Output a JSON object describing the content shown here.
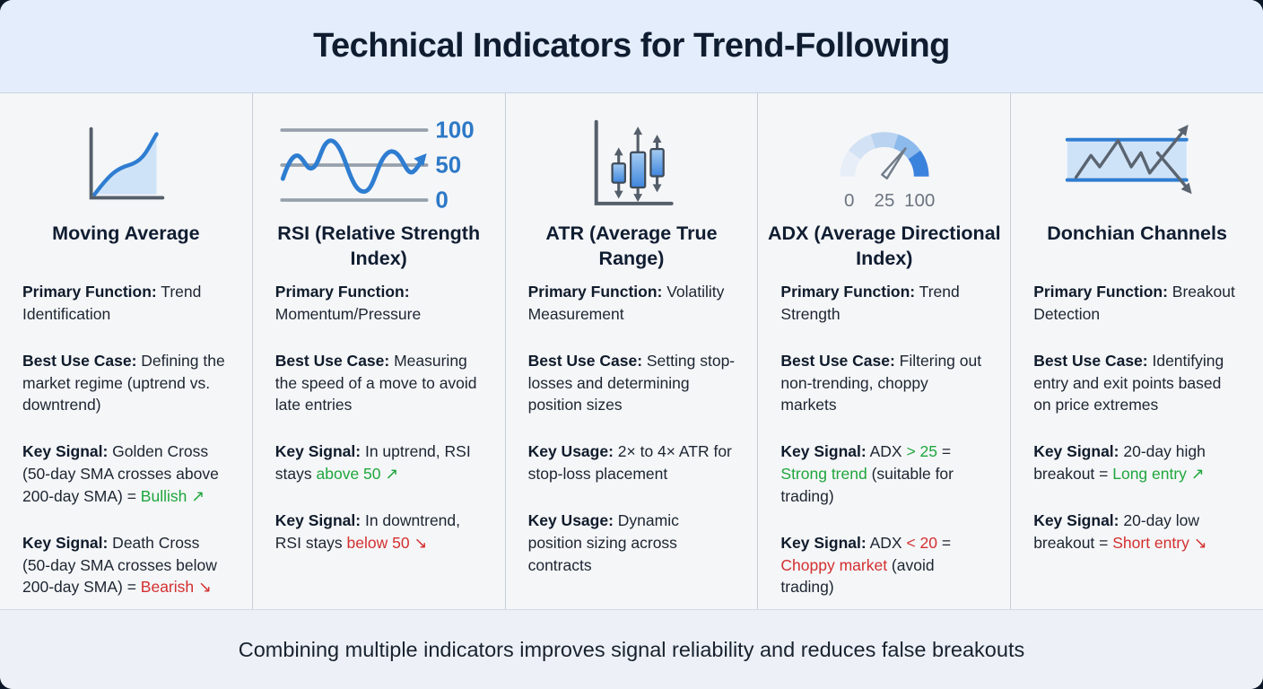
{
  "title": "Technical Indicators for Trend-Following",
  "footer_note": "Combining multiple indicators improves signal reliability and reduces false breakouts",
  "colors": {
    "positive_green": "#1ea63c",
    "negative_red": "#d32f2f",
    "accent_blue": "#2e7dd1",
    "header_bg": "#e3edfb",
    "panel_bg": "#f5f6f8",
    "footer_bg": "#edf1f7",
    "heading_text": "#101d31"
  },
  "icon_labels": {
    "rsi_scale": [
      "100",
      "50",
      "0"
    ],
    "adx_scale": [
      "0",
      "25",
      "100"
    ]
  },
  "columns": [
    {
      "id": "moving-average",
      "icon": "line-chart-icon",
      "title": "Moving Average",
      "sections": [
        {
          "label": "Primary Function:",
          "segments": [
            {
              "text": " Trend Identification"
            }
          ]
        },
        {
          "label": "Best Use Case:",
          "segments": [
            {
              "text": " Defining the market regime (uptrend vs. downtrend)"
            }
          ]
        },
        {
          "label": "Key Signal:",
          "segments": [
            {
              "text": " Golden Cross (50-day SMA crosses above 200-day SMA) = "
            },
            {
              "text": "Bullish ↗",
              "color": "green"
            }
          ]
        },
        {
          "label": "Key Signal:",
          "segments": [
            {
              "text": " Death Cross (50-day SMA crosses below 200-day SMA) = "
            },
            {
              "text": "Bearish ↘",
              "color": "red"
            }
          ]
        }
      ]
    },
    {
      "id": "rsi",
      "icon": "oscillator-wave-icon",
      "title": "RSI (Relative Strength Index)",
      "sections": [
        {
          "label": "Primary Function:",
          "segments": [
            {
              "text": " Momentum/Pressure"
            }
          ]
        },
        {
          "label": "Best Use Case:",
          "segments": [
            {
              "text": " Measuring the speed of a move to avoid late entries"
            }
          ]
        },
        {
          "label": "Key Signal:",
          "segments": [
            {
              "text": " In uptrend, RSI stays "
            },
            {
              "text": "above 50 ↗",
              "color": "green"
            }
          ]
        },
        {
          "label": "Key Signal:",
          "segments": [
            {
              "text": " In downtrend, RSI stays "
            },
            {
              "text": "below 50 ↘",
              "color": "red"
            }
          ]
        }
      ]
    },
    {
      "id": "atr",
      "icon": "candlestick-range-icon",
      "title": "ATR (Average True Range)",
      "sections": [
        {
          "label": "Primary Function:",
          "segments": [
            {
              "text": " Volatility Measurement"
            }
          ]
        },
        {
          "label": "Best Use Case:",
          "segments": [
            {
              "text": " Setting stop-losses and determining position sizes"
            }
          ]
        },
        {
          "label": "Key Usage:",
          "segments": [
            {
              "text": " 2× to 4× ATR for stop-loss placement"
            }
          ]
        },
        {
          "label": "Key Usage:",
          "segments": [
            {
              "text": " Dynamic position sizing across contracts"
            }
          ]
        }
      ]
    },
    {
      "id": "adx",
      "icon": "gauge-icon",
      "title": "ADX (Average Directional Index)",
      "sections": [
        {
          "label": "Primary Function:",
          "segments": [
            {
              "text": " Trend Strength"
            }
          ]
        },
        {
          "label": "Best Use Case:",
          "segments": [
            {
              "text": " Filtering out non-trending, choppy markets"
            }
          ]
        },
        {
          "label": "Key Signal:",
          "segments": [
            {
              "text": " ADX "
            },
            {
              "text": "> 25",
              "color": "green"
            },
            {
              "text": " = "
            },
            {
              "text": "Strong trend",
              "color": "green"
            },
            {
              "text": " (suitable for trading)"
            }
          ]
        },
        {
          "label": "Key Signal:",
          "segments": [
            {
              "text": " ADX "
            },
            {
              "text": "< 20",
              "color": "red"
            },
            {
              "text": " = "
            },
            {
              "text": "Choppy market",
              "color": "red"
            },
            {
              "text": " (avoid trading)"
            }
          ]
        }
      ]
    },
    {
      "id": "donchian-channels",
      "icon": "channel-breakout-icon",
      "title": "Donchian Channels",
      "sections": [
        {
          "label": "Primary Function:",
          "segments": [
            {
              "text": " Breakout Detection"
            }
          ]
        },
        {
          "label": "Best Use Case:",
          "segments": [
            {
              "text": " Identifying entry and exit points based on price extremes"
            }
          ]
        },
        {
          "label": "Key Signal:",
          "segments": [
            {
              "text": " 20-day high breakout = "
            },
            {
              "text": "Long entry ↗",
              "color": "green"
            }
          ]
        },
        {
          "label": "Key Signal:",
          "segments": [
            {
              "text": " 20-day low breakout = "
            },
            {
              "text": "Short entry ↘",
              "color": "red"
            }
          ]
        }
      ]
    }
  ]
}
